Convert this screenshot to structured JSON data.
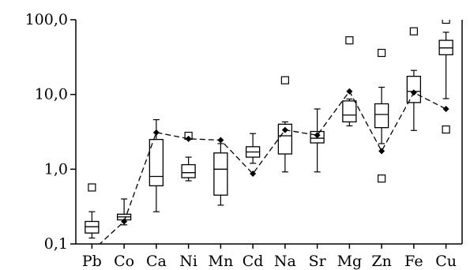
{
  "chart_data": {
    "type": "boxplot",
    "y_scale": "log",
    "ylim": [
      0.1,
      100
    ],
    "y_ticks": [
      {
        "value": 0.1,
        "label": "0,1"
      },
      {
        "value": 1,
        "label": "1,0"
      },
      {
        "value": 10,
        "label": "10,0"
      },
      {
        "value": 100,
        "label": "100,0"
      }
    ],
    "categories": [
      "Pb",
      "Co",
      "Ca",
      "Ni",
      "Mn",
      "Cd",
      "Na",
      "Sr",
      "Mg",
      "Zn",
      "Fe",
      "Cu"
    ],
    "boxes": [
      {
        "whisker_low": 0.12,
        "q1": 0.14,
        "median": 0.17,
        "q3": 0.2,
        "whisker_high": 0.27,
        "outliers": [
          0.57
        ]
      },
      {
        "whisker_low": 0.18,
        "q1": 0.21,
        "median": 0.23,
        "q3": 0.25,
        "whisker_high": 0.4,
        "outliers": []
      },
      {
        "whisker_low": 0.27,
        "q1": 0.6,
        "median": 0.8,
        "q3": 2.5,
        "whisker_high": 4.6,
        "outliers": []
      },
      {
        "whisker_low": 0.7,
        "q1": 0.77,
        "median": 0.9,
        "q3": 1.15,
        "whisker_high": 1.45,
        "outliers": [
          2.8
        ]
      },
      {
        "whisker_low": 0.33,
        "q1": 0.45,
        "median": 1.0,
        "q3": 1.65,
        "whisker_high": 2.2,
        "outliers": []
      },
      {
        "whisker_low": 1.2,
        "q1": 1.45,
        "median": 1.7,
        "q3": 2.0,
        "whisker_high": 3.0,
        "outliers": []
      },
      {
        "whisker_low": 0.92,
        "q1": 1.6,
        "median": 2.8,
        "q3": 4.0,
        "whisker_high": 4.3,
        "outliers": [
          15.5
        ]
      },
      {
        "whisker_low": 0.92,
        "q1": 2.25,
        "median": 2.6,
        "q3": 3.2,
        "whisker_high": 6.4,
        "outliers": []
      },
      {
        "whisker_low": 3.8,
        "q1": 4.3,
        "median": 5.3,
        "q3": 8.2,
        "whisker_high": 8.7,
        "outliers": [
          53
        ]
      },
      {
        "whisker_low": 2.2,
        "q1": 3.6,
        "median": 5.4,
        "q3": 7.5,
        "whisker_high": 12.5,
        "outliers": [
          36,
          0.75
        ]
      },
      {
        "whisker_low": 3.3,
        "q1": 7.8,
        "median": 11.0,
        "q3": 17.5,
        "whisker_high": 21,
        "outliers": [
          70
        ]
      },
      {
        "whisker_low": 8.8,
        "q1": 34,
        "median": 42,
        "q3": 53,
        "whisker_high": 68,
        "outliers": [
          100,
          3.4
        ]
      }
    ],
    "mean_line": {
      "style": "dashed",
      "marker": "diamond",
      "values": [
        0.08,
        0.2,
        3.1,
        2.55,
        2.45,
        0.87,
        3.35,
        2.85,
        11.0,
        1.75,
        10.6,
        6.4
      ]
    }
  }
}
